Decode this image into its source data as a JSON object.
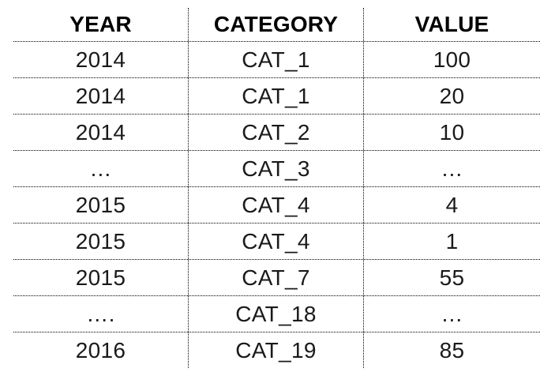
{
  "chart_data": {
    "type": "table",
    "title": "",
    "columns": [
      "YEAR",
      "CATEGORY",
      "VALUE"
    ],
    "rows": [
      [
        "2014",
        "CAT_1",
        "100"
      ],
      [
        "2014",
        "CAT_1",
        "20"
      ],
      [
        "2014",
        "CAT_2",
        "10"
      ],
      [
        "…",
        "CAT_3",
        "…"
      ],
      [
        "2015",
        "CAT_4",
        "4"
      ],
      [
        "2015",
        "CAT_4",
        "1"
      ],
      [
        "2015",
        "CAT_7",
        "55"
      ],
      [
        "….",
        "CAT_18",
        "…"
      ],
      [
        "2016",
        "CAT_19",
        "85"
      ]
    ],
    "layout": {
      "grid": "dotted",
      "outer_border": false,
      "text_align": "center"
    }
  },
  "colors": {
    "background": "#ffffff",
    "header_text": "#000000",
    "cell_text": "#1a1a1a",
    "grid": "#000000"
  }
}
